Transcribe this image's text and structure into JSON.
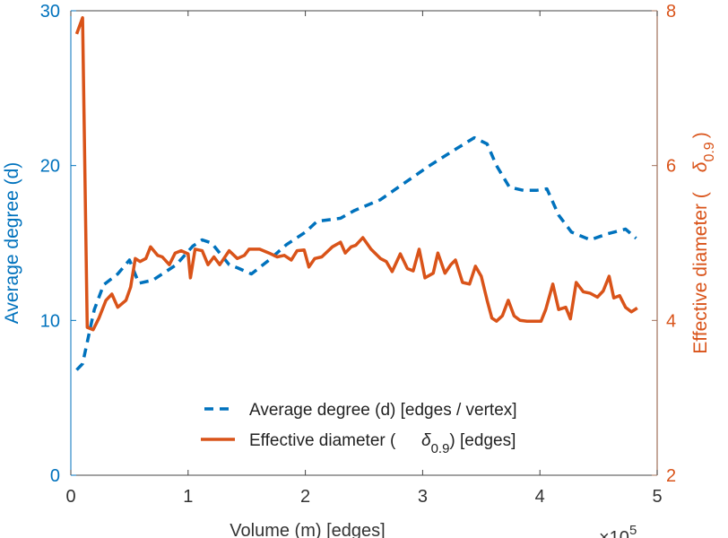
{
  "chart_data": {
    "type": "line",
    "title": "",
    "xlabel": "Volume (m) [edges]",
    "x_multiplier": "×10",
    "x_multiplier_exp": "5",
    "ylabel_left": "Average degree (d)",
    "ylabel_right_prefix": "Effective diameter (",
    "ylabel_right_symbol": "δ",
    "ylabel_right_sub": "0.9",
    "ylabel_right_suffix": ")",
    "xlim": [
      0,
      5
    ],
    "ylim_left": [
      0,
      30
    ],
    "ylim_right": [
      2,
      8
    ],
    "xticks": [
      "0",
      "1",
      "2",
      "3",
      "4",
      "5"
    ],
    "yticks_left": [
      "0",
      "10",
      "20",
      "30"
    ],
    "yticks_right": [
      "2",
      "4",
      "6",
      "8"
    ],
    "grid": false,
    "legend_position": "bottom-center",
    "colors": {
      "left": "#0072BD",
      "right": "#D95319",
      "right_axis": "#A0705A"
    },
    "series": [
      {
        "name": "Average degree (d) [edges / vertex]",
        "axis": "left",
        "style": "dashed",
        "x": [
          0.05,
          0.1,
          0.2,
          0.28,
          0.4,
          0.5,
          0.58,
          0.7,
          0.9,
          1.04,
          1.12,
          1.2,
          1.35,
          1.42,
          1.54,
          1.69,
          1.84,
          2.0,
          2.1,
          2.3,
          2.42,
          2.64,
          2.83,
          3.06,
          3.29,
          3.44,
          3.55,
          3.63,
          3.74,
          3.86,
          3.97,
          4.06,
          4.16,
          4.27,
          4.43,
          4.58,
          4.73,
          4.82
        ],
        "y": [
          6.8,
          7.2,
          10.7,
          12.3,
          13.0,
          13.9,
          12.4,
          12.6,
          13.6,
          14.8,
          15.2,
          15.0,
          13.6,
          13.4,
          13.0,
          13.9,
          14.9,
          15.7,
          16.4,
          16.6,
          17.1,
          17.8,
          18.8,
          20.0,
          21.1,
          21.8,
          21.4,
          20.0,
          18.6,
          18.4,
          18.4,
          18.5,
          16.8,
          15.7,
          15.2,
          15.6,
          15.9,
          15.3
        ]
      },
      {
        "name": "Effective diameter (δ0.9) [edges]",
        "legend_prefix": "Effective diameter (",
        "legend_symbol": "δ",
        "legend_sub": "0.9",
        "legend_suffix": ") [edges]",
        "axis": "right",
        "style": "solid",
        "x": [
          0.05,
          0.1,
          0.14,
          0.19,
          0.24,
          0.3,
          0.35,
          0.4,
          0.47,
          0.51,
          0.55,
          0.59,
          0.64,
          0.68,
          0.74,
          0.78,
          0.84,
          0.89,
          0.94,
          1.0,
          1.02,
          1.06,
          1.12,
          1.17,
          1.22,
          1.27,
          1.35,
          1.42,
          1.48,
          1.52,
          1.61,
          1.69,
          1.76,
          1.82,
          1.88,
          1.93,
          1.99,
          2.03,
          2.08,
          2.14,
          2.23,
          2.3,
          2.34,
          2.39,
          2.43,
          2.49,
          2.56,
          2.64,
          2.69,
          2.74,
          2.81,
          2.87,
          2.92,
          2.97,
          3.02,
          3.09,
          3.13,
          3.19,
          3.24,
          3.28,
          3.34,
          3.4,
          3.45,
          3.5,
          3.55,
          3.59,
          3.63,
          3.68,
          3.73,
          3.78,
          3.83,
          3.89,
          4.01,
          4.05,
          4.11,
          4.16,
          4.22,
          4.26,
          4.31,
          4.37,
          4.43,
          4.49,
          4.54,
          4.59,
          4.63,
          4.68,
          4.73,
          4.78,
          4.83
        ],
        "y": [
          7.7,
          7.91,
          3.91,
          3.88,
          4.03,
          4.26,
          4.34,
          4.17,
          4.26,
          4.43,
          4.8,
          4.76,
          4.8,
          4.95,
          4.84,
          4.82,
          4.72,
          4.87,
          4.9,
          4.86,
          4.55,
          4.92,
          4.9,
          4.72,
          4.82,
          4.72,
          4.9,
          4.8,
          4.84,
          4.92,
          4.92,
          4.87,
          4.82,
          4.84,
          4.78,
          4.9,
          4.91,
          4.69,
          4.8,
          4.82,
          4.95,
          5.01,
          4.87,
          4.95,
          4.97,
          5.07,
          4.92,
          4.8,
          4.76,
          4.63,
          4.86,
          4.67,
          4.64,
          4.92,
          4.55,
          4.61,
          4.87,
          4.61,
          4.72,
          4.78,
          4.49,
          4.47,
          4.7,
          4.57,
          4.26,
          4.03,
          3.99,
          4.06,
          4.26,
          4.06,
          4.0,
          3.99,
          3.99,
          4.14,
          4.47,
          4.14,
          4.17,
          4.02,
          4.49,
          4.37,
          4.35,
          4.3,
          4.38,
          4.57,
          4.29,
          4.32,
          4.17,
          4.11,
          4.16
        ]
      }
    ]
  }
}
